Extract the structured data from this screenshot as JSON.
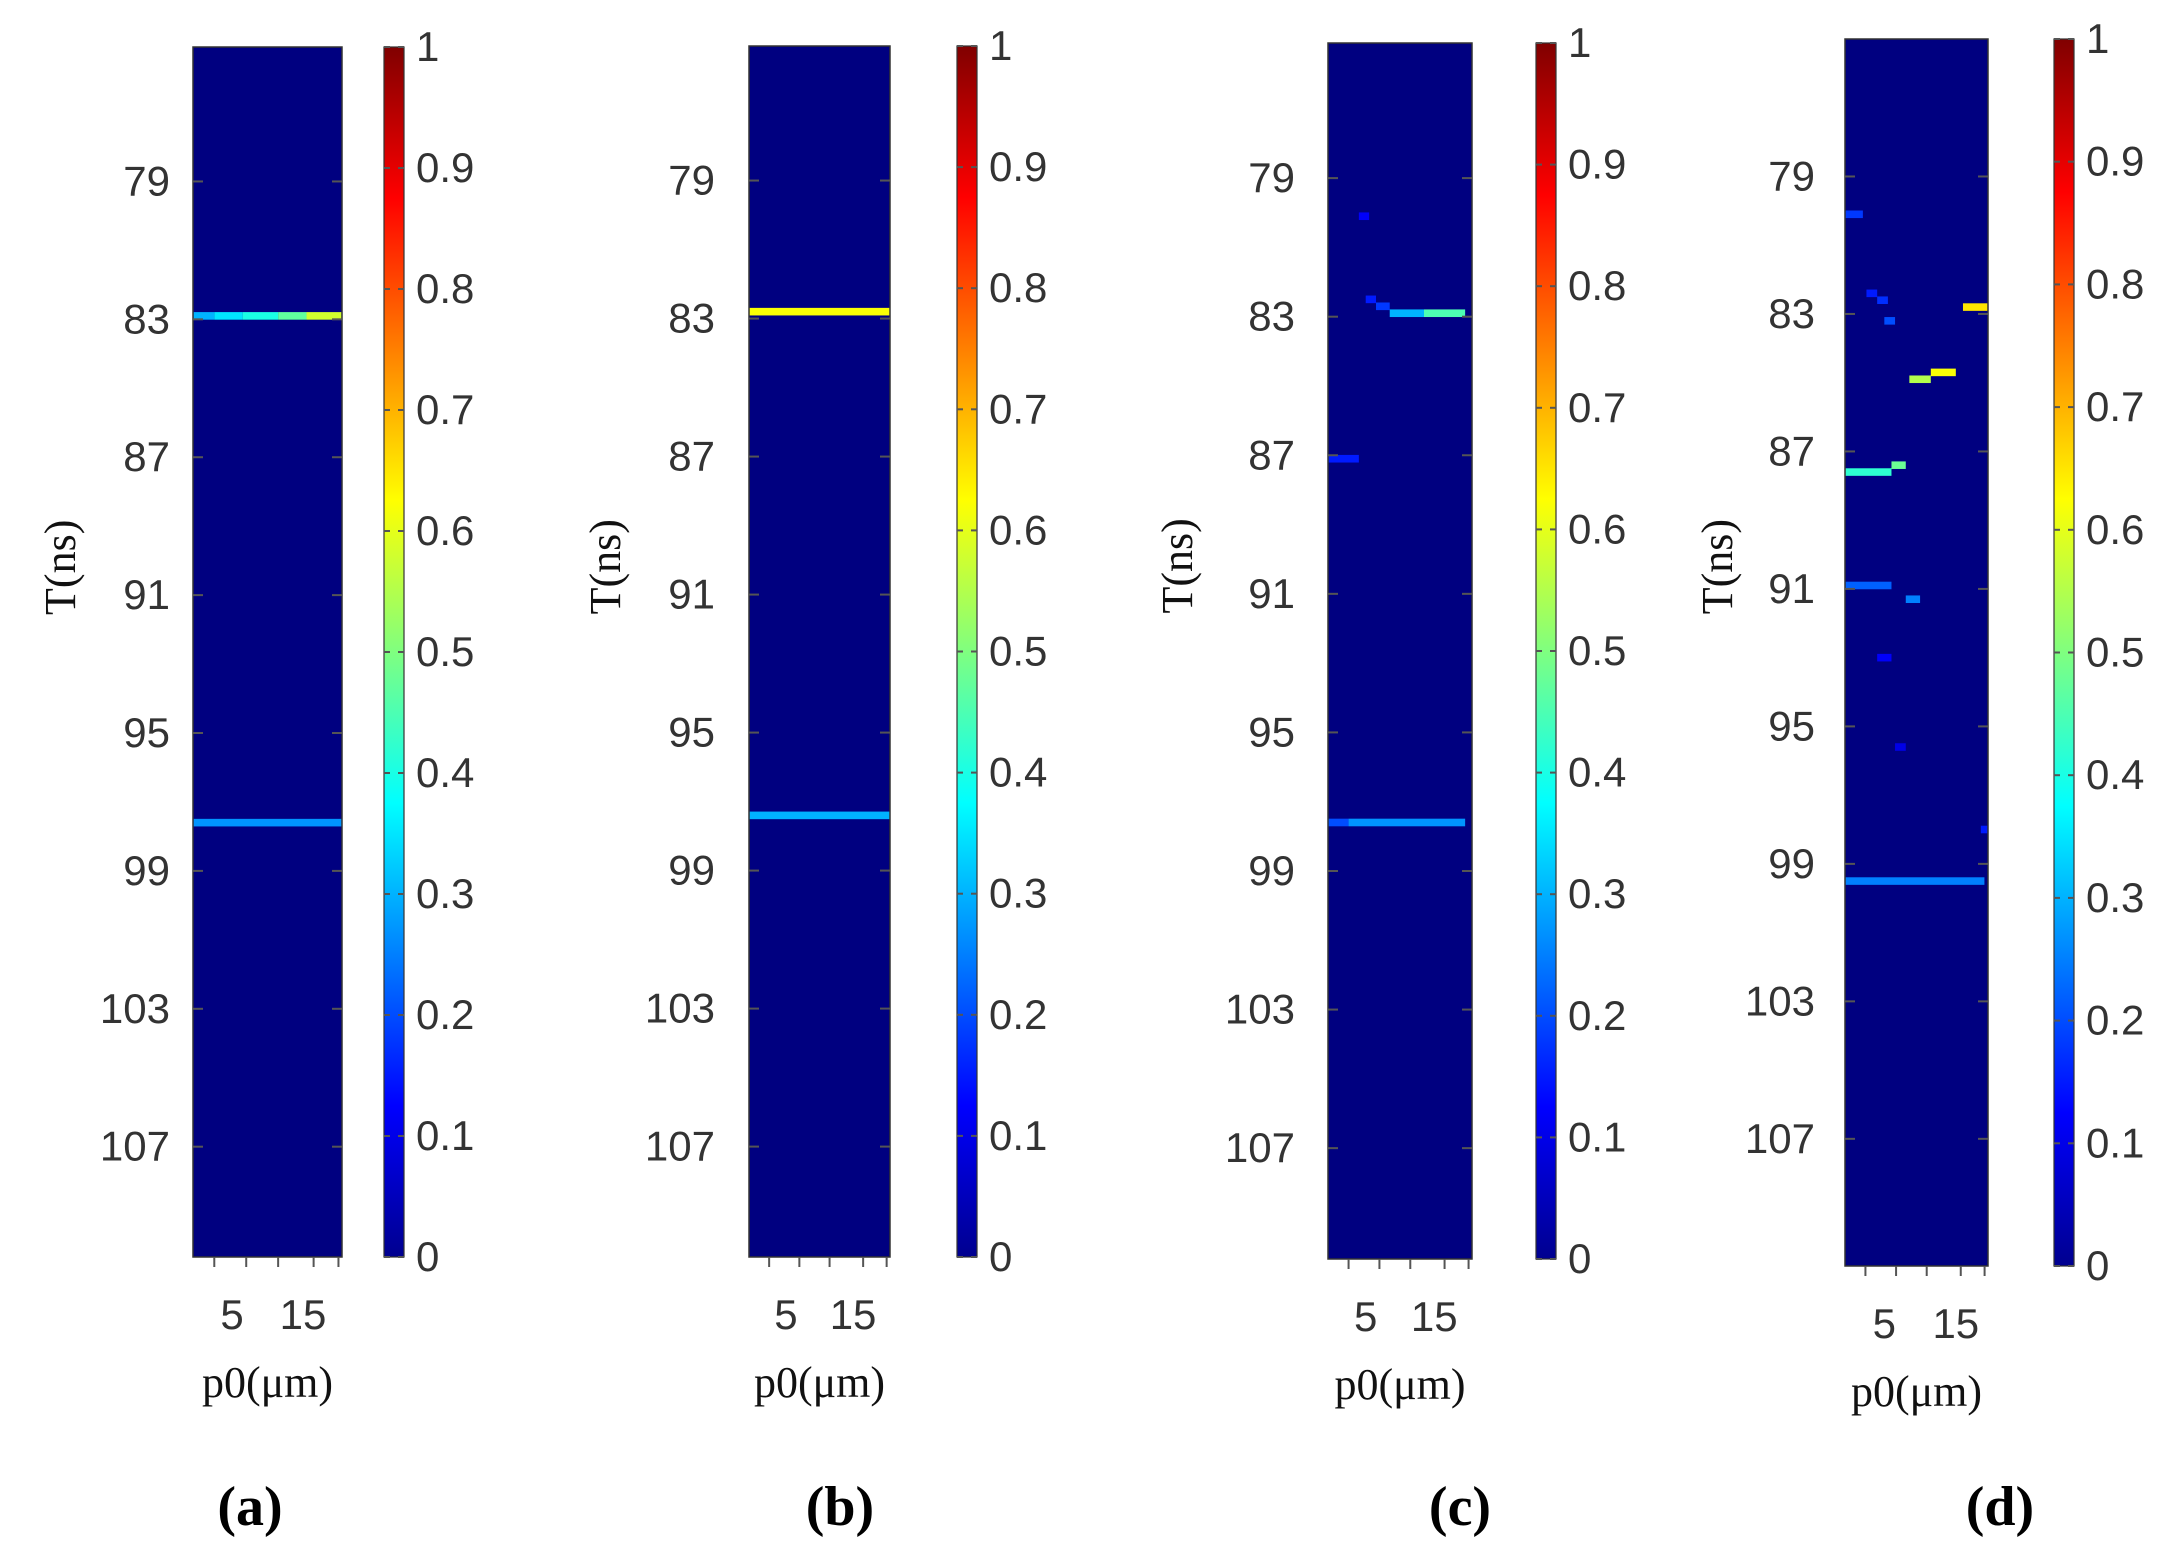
{
  "chart_data": [
    {
      "type": "heatmap",
      "panel_label": "(a)",
      "xlabel": "p0(μm)",
      "ylabel": "T(ns)",
      "x_ticks": [
        "5",
        "15"
      ],
      "x_tick_values": [
        5,
        15
      ],
      "xlim": [
        0,
        21
      ],
      "y_ticks": [
        "79",
        "83",
        "87",
        "91",
        "95",
        "99",
        "103",
        "107"
      ],
      "y_tick_values": [
        79,
        83,
        87,
        91,
        95,
        99,
        103,
        107
      ],
      "ylim": [
        75.1,
        110.2
      ],
      "colorbar_ticks": [
        "0",
        "0.1",
        "0.2",
        "0.3",
        "0.4",
        "0.5",
        "0.6",
        "0.7",
        "0.8",
        "0.9",
        "1"
      ],
      "clim": [
        0,
        1
      ],
      "background_value": 0.0,
      "features": [
        {
          "t": 82.9,
          "x0": 0,
          "x1": 3,
          "value": 0.3
        },
        {
          "t": 82.9,
          "x0": 3,
          "x1": 7,
          "value": 0.35
        },
        {
          "t": 82.9,
          "x0": 7,
          "x1": 12,
          "value": 0.4
        },
        {
          "t": 82.9,
          "x0": 12,
          "x1": 16,
          "value": 0.47
        },
        {
          "t": 82.9,
          "x0": 16,
          "x1": 21,
          "value": 0.58
        },
        {
          "t": 97.6,
          "x0": 0,
          "x1": 21,
          "value": 0.27
        }
      ]
    },
    {
      "type": "heatmap",
      "panel_label": "(b)",
      "xlabel": "p0(μm)",
      "ylabel": "T(ns)",
      "x_ticks": [
        "5",
        "15"
      ],
      "x_tick_values": [
        5,
        15
      ],
      "xlim": [
        0,
        21
      ],
      "y_ticks": [
        "79",
        "83",
        "87",
        "91",
        "95",
        "99",
        "103",
        "107"
      ],
      "y_tick_values": [
        79,
        83,
        87,
        91,
        95,
        99,
        103,
        107
      ],
      "ylim": [
        75.1,
        110.2
      ],
      "colorbar_ticks": [
        "0",
        "0.1",
        "0.2",
        "0.3",
        "0.4",
        "0.5",
        "0.6",
        "0.7",
        "0.8",
        "0.9",
        "1"
      ],
      "clim": [
        0,
        1
      ],
      "background_value": 0.0,
      "features": [
        {
          "t": 82.8,
          "x0": 0,
          "x1": 21,
          "value": 0.62
        },
        {
          "t": 97.4,
          "x0": 0,
          "x1": 21,
          "value": 0.3
        }
      ]
    },
    {
      "type": "heatmap",
      "panel_label": "(c)",
      "xlabel": "p0(μm)",
      "ylabel": "T(ns)",
      "x_ticks": [
        "5",
        "15"
      ],
      "x_tick_values": [
        5,
        15
      ],
      "xlim": [
        0,
        21
      ],
      "y_ticks": [
        "79",
        "83",
        "87",
        "91",
        "95",
        "99",
        "103",
        "107"
      ],
      "y_tick_values": [
        79,
        83,
        87,
        91,
        95,
        99,
        103,
        107
      ],
      "ylim": [
        75.1,
        110.2
      ],
      "colorbar_ticks": [
        "0",
        "0.1",
        "0.2",
        "0.3",
        "0.4",
        "0.5",
        "0.6",
        "0.7",
        "0.8",
        "0.9",
        "1"
      ],
      "clim": [
        0,
        1
      ],
      "background_value": 0.0,
      "features": [
        {
          "t": 80.1,
          "x0": 4.5,
          "x1": 6,
          "value": 0.12
        },
        {
          "t": 82.5,
          "x0": 5.5,
          "x1": 7,
          "value": 0.15
        },
        {
          "t": 82.7,
          "x0": 7,
          "x1": 9,
          "value": 0.18
        },
        {
          "t": 82.9,
          "x0": 9,
          "x1": 14,
          "value": 0.3
        },
        {
          "t": 82.9,
          "x0": 14,
          "x1": 20,
          "value": 0.45
        },
        {
          "t": 87.1,
          "x0": 0,
          "x1": 4.5,
          "value": 0.15
        },
        {
          "t": 97.6,
          "x0": 0,
          "x1": 3,
          "value": 0.2
        },
        {
          "t": 97.6,
          "x0": 3,
          "x1": 20,
          "value": 0.27
        }
      ]
    },
    {
      "type": "heatmap",
      "panel_label": "(d)",
      "xlabel": "p0(μm)",
      "ylabel": "T(ns)",
      "x_ticks": [
        "5",
        "15"
      ],
      "x_tick_values": [
        5,
        15
      ],
      "xlim": [
        0,
        20
      ],
      "y_ticks": [
        "79",
        "83",
        "87",
        "91",
        "95",
        "99",
        "103",
        "107"
      ],
      "y_tick_values": [
        79,
        83,
        87,
        91,
        95,
        99,
        103,
        107
      ],
      "ylim": [
        75.0,
        110.7
      ],
      "colorbar_ticks": [
        "0",
        "0.1",
        "0.2",
        "0.3",
        "0.4",
        "0.5",
        "0.6",
        "0.7",
        "0.8",
        "0.9",
        "1"
      ],
      "clim": [
        0,
        1
      ],
      "background_value": 0.0,
      "features": [
        {
          "t": 80.1,
          "x0": 0,
          "x1": 2.5,
          "value": 0.18
        },
        {
          "t": 82.4,
          "x0": 3,
          "x1": 4.5,
          "value": 0.15
        },
        {
          "t": 82.6,
          "x0": 4.5,
          "x1": 6,
          "value": 0.17
        },
        {
          "t": 83.2,
          "x0": 5.5,
          "x1": 7,
          "value": 0.2
        },
        {
          "t": 82.8,
          "x0": 16.5,
          "x1": 20,
          "value": 0.65
        },
        {
          "t": 84.9,
          "x0": 9,
          "x1": 12,
          "value": 0.55
        },
        {
          "t": 84.7,
          "x0": 12,
          "x1": 15.5,
          "value": 0.62
        },
        {
          "t": 87.4,
          "x0": 6.5,
          "x1": 8.5,
          "value": 0.48
        },
        {
          "t": 87.6,
          "x0": 0,
          "x1": 6.5,
          "value": 0.42
        },
        {
          "t": 90.9,
          "x0": 0,
          "x1": 6.5,
          "value": 0.22
        },
        {
          "t": 91.3,
          "x0": 8.5,
          "x1": 10.5,
          "value": 0.25
        },
        {
          "t": 93.0,
          "x0": 4.5,
          "x1": 6.5,
          "value": 0.12
        },
        {
          "t": 95.6,
          "x0": 7,
          "x1": 8.5,
          "value": 0.1
        },
        {
          "t": 98.0,
          "x0": 19,
          "x1": 20,
          "value": 0.15
        },
        {
          "t": 99.5,
          "x0": 0,
          "x1": 19.5,
          "value": 0.25
        }
      ]
    }
  ]
}
